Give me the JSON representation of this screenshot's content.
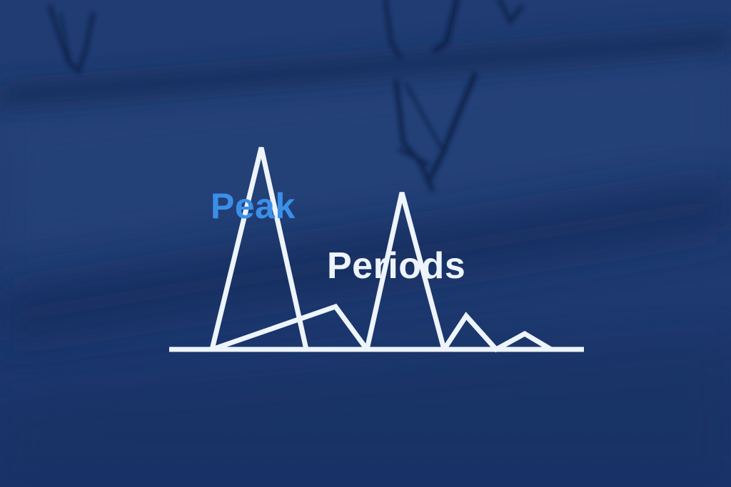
{
  "logo": {
    "line1": "Peak",
    "line2": "Periods"
  },
  "colors": {
    "background": "#1f3a70",
    "line1_color": "#3b8fe8",
    "line2_color": "#eef4fb",
    "graph_line": "#eef4fb"
  },
  "icons": {
    "graph": "mountain-peaks-line-graph-icon"
  }
}
